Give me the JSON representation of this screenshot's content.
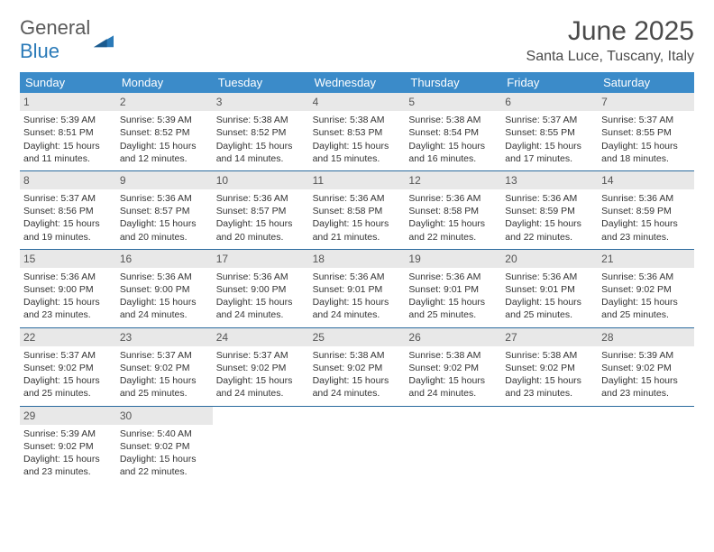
{
  "logo": {
    "text1": "General",
    "text2": "Blue"
  },
  "title": "June 2025",
  "location": "Santa Luce, Tuscany, Italy",
  "colors": {
    "header_bg": "#3b8bc9",
    "header_text": "#ffffff",
    "daynum_bg": "#e8e8e8",
    "week_border": "#2a6a9e",
    "body_text": "#333333",
    "logo_gray": "#5a5a5a",
    "logo_blue": "#2a7ab8"
  },
  "fonts": {
    "title_size": 30,
    "location_size": 16,
    "header_size": 13,
    "cell_size": 10.5
  },
  "dayNames": [
    "Sunday",
    "Monday",
    "Tuesday",
    "Wednesday",
    "Thursday",
    "Friday",
    "Saturday"
  ],
  "labels": {
    "sunrise": "Sunrise: ",
    "sunset": "Sunset: ",
    "daylight": "Daylight: "
  },
  "weeks": [
    [
      {
        "n": "1",
        "rise": "5:39 AM",
        "set": "8:51 PM",
        "dl1": "15 hours",
        "dl2": "and 11 minutes."
      },
      {
        "n": "2",
        "rise": "5:39 AM",
        "set": "8:52 PM",
        "dl1": "15 hours",
        "dl2": "and 12 minutes."
      },
      {
        "n": "3",
        "rise": "5:38 AM",
        "set": "8:52 PM",
        "dl1": "15 hours",
        "dl2": "and 14 minutes."
      },
      {
        "n": "4",
        "rise": "5:38 AM",
        "set": "8:53 PM",
        "dl1": "15 hours",
        "dl2": "and 15 minutes."
      },
      {
        "n": "5",
        "rise": "5:38 AM",
        "set": "8:54 PM",
        "dl1": "15 hours",
        "dl2": "and 16 minutes."
      },
      {
        "n": "6",
        "rise": "5:37 AM",
        "set": "8:55 PM",
        "dl1": "15 hours",
        "dl2": "and 17 minutes."
      },
      {
        "n": "7",
        "rise": "5:37 AM",
        "set": "8:55 PM",
        "dl1": "15 hours",
        "dl2": "and 18 minutes."
      }
    ],
    [
      {
        "n": "8",
        "rise": "5:37 AM",
        "set": "8:56 PM",
        "dl1": "15 hours",
        "dl2": "and 19 minutes."
      },
      {
        "n": "9",
        "rise": "5:36 AM",
        "set": "8:57 PM",
        "dl1": "15 hours",
        "dl2": "and 20 minutes."
      },
      {
        "n": "10",
        "rise": "5:36 AM",
        "set": "8:57 PM",
        "dl1": "15 hours",
        "dl2": "and 20 minutes."
      },
      {
        "n": "11",
        "rise": "5:36 AM",
        "set": "8:58 PM",
        "dl1": "15 hours",
        "dl2": "and 21 minutes."
      },
      {
        "n": "12",
        "rise": "5:36 AM",
        "set": "8:58 PM",
        "dl1": "15 hours",
        "dl2": "and 22 minutes."
      },
      {
        "n": "13",
        "rise": "5:36 AM",
        "set": "8:59 PM",
        "dl1": "15 hours",
        "dl2": "and 22 minutes."
      },
      {
        "n": "14",
        "rise": "5:36 AM",
        "set": "8:59 PM",
        "dl1": "15 hours",
        "dl2": "and 23 minutes."
      }
    ],
    [
      {
        "n": "15",
        "rise": "5:36 AM",
        "set": "9:00 PM",
        "dl1": "15 hours",
        "dl2": "and 23 minutes."
      },
      {
        "n": "16",
        "rise": "5:36 AM",
        "set": "9:00 PM",
        "dl1": "15 hours",
        "dl2": "and 24 minutes."
      },
      {
        "n": "17",
        "rise": "5:36 AM",
        "set": "9:00 PM",
        "dl1": "15 hours",
        "dl2": "and 24 minutes."
      },
      {
        "n": "18",
        "rise": "5:36 AM",
        "set": "9:01 PM",
        "dl1": "15 hours",
        "dl2": "and 24 minutes."
      },
      {
        "n": "19",
        "rise": "5:36 AM",
        "set": "9:01 PM",
        "dl1": "15 hours",
        "dl2": "and 25 minutes."
      },
      {
        "n": "20",
        "rise": "5:36 AM",
        "set": "9:01 PM",
        "dl1": "15 hours",
        "dl2": "and 25 minutes."
      },
      {
        "n": "21",
        "rise": "5:36 AM",
        "set": "9:02 PM",
        "dl1": "15 hours",
        "dl2": "and 25 minutes."
      }
    ],
    [
      {
        "n": "22",
        "rise": "5:37 AM",
        "set": "9:02 PM",
        "dl1": "15 hours",
        "dl2": "and 25 minutes."
      },
      {
        "n": "23",
        "rise": "5:37 AM",
        "set": "9:02 PM",
        "dl1": "15 hours",
        "dl2": "and 25 minutes."
      },
      {
        "n": "24",
        "rise": "5:37 AM",
        "set": "9:02 PM",
        "dl1": "15 hours",
        "dl2": "and 24 minutes."
      },
      {
        "n": "25",
        "rise": "5:38 AM",
        "set": "9:02 PM",
        "dl1": "15 hours",
        "dl2": "and 24 minutes."
      },
      {
        "n": "26",
        "rise": "5:38 AM",
        "set": "9:02 PM",
        "dl1": "15 hours",
        "dl2": "and 24 minutes."
      },
      {
        "n": "27",
        "rise": "5:38 AM",
        "set": "9:02 PM",
        "dl1": "15 hours",
        "dl2": "and 23 minutes."
      },
      {
        "n": "28",
        "rise": "5:39 AM",
        "set": "9:02 PM",
        "dl1": "15 hours",
        "dl2": "and 23 minutes."
      }
    ],
    [
      {
        "n": "29",
        "rise": "5:39 AM",
        "set": "9:02 PM",
        "dl1": "15 hours",
        "dl2": "and 23 minutes."
      },
      {
        "n": "30",
        "rise": "5:40 AM",
        "set": "9:02 PM",
        "dl1": "15 hours",
        "dl2": "and 22 minutes."
      },
      null,
      null,
      null,
      null,
      null
    ]
  ]
}
